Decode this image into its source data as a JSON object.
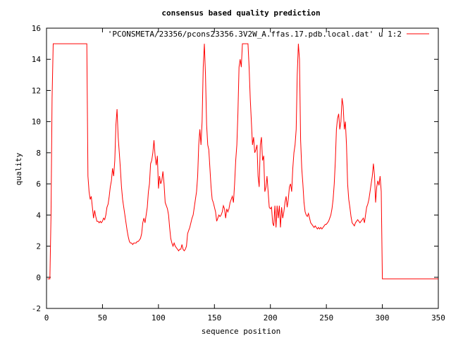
{
  "chart_data": {
    "type": "line",
    "title": "consensus based quality prediction",
    "xlabel": "sequence position",
    "ylabel": "quality",
    "xlim": [
      0,
      350
    ],
    "ylim": [
      -2,
      16
    ],
    "xticks": [
      0,
      50,
      100,
      150,
      200,
      250,
      300,
      350
    ],
    "yticks": [
      -2,
      0,
      2,
      4,
      6,
      8,
      10,
      12,
      14,
      16
    ],
    "grid": false,
    "legend_position": "top-right",
    "series": [
      {
        "name": "'PCONSMETA/23356/pcons23356.3V2W_A.ffas.17.pdb.local.dat' u 1:2",
        "color": "#ff0000",
        "points": [
          [
            1,
            -0.1
          ],
          [
            2,
            -0.1
          ],
          [
            3,
            -0.1
          ],
          [
            4,
            4.0
          ],
          [
            5,
            11.5
          ],
          [
            6,
            15.0
          ],
          [
            10,
            15.0
          ],
          [
            15,
            15.0
          ],
          [
            20,
            15.0
          ],
          [
            25,
            15.0
          ],
          [
            30,
            15.0
          ],
          [
            35,
            15.0
          ],
          [
            36,
            15.0
          ],
          [
            37,
            6.5
          ],
          [
            38,
            5.5
          ],
          [
            39,
            5.0
          ],
          [
            40,
            5.2
          ],
          [
            41,
            4.5
          ],
          [
            42,
            3.8
          ],
          [
            43,
            4.3
          ],
          [
            44,
            3.9
          ],
          [
            45,
            3.6
          ],
          [
            46,
            3.6
          ],
          [
            47,
            3.5
          ],
          [
            48,
            3.6
          ],
          [
            49,
            3.5
          ],
          [
            50,
            3.6
          ],
          [
            51,
            3.8
          ],
          [
            52,
            3.7
          ],
          [
            53,
            4.0
          ],
          [
            54,
            4.5
          ],
          [
            55,
            4.7
          ],
          [
            56,
            5.2
          ],
          [
            57,
            5.8
          ],
          [
            58,
            6.2
          ],
          [
            59,
            7.0
          ],
          [
            60,
            6.5
          ],
          [
            61,
            7.5
          ],
          [
            62,
            9.8
          ],
          [
            63,
            10.8
          ],
          [
            64,
            9.0
          ],
          [
            65,
            8.0
          ],
          [
            66,
            7.0
          ],
          [
            67,
            5.8
          ],
          [
            68,
            5.0
          ],
          [
            69,
            4.5
          ],
          [
            70,
            4.0
          ],
          [
            71,
            3.5
          ],
          [
            72,
            3.0
          ],
          [
            73,
            2.6
          ],
          [
            74,
            2.3
          ],
          [
            75,
            2.2
          ],
          [
            76,
            2.2
          ],
          [
            77,
            2.1
          ],
          [
            78,
            2.2
          ],
          [
            79,
            2.2
          ],
          [
            80,
            2.2
          ],
          [
            81,
            2.3
          ],
          [
            82,
            2.3
          ],
          [
            83,
            2.4
          ],
          [
            84,
            2.5
          ],
          [
            85,
            2.8
          ],
          [
            86,
            3.5
          ],
          [
            87,
            3.8
          ],
          [
            88,
            3.5
          ],
          [
            89,
            4.0
          ],
          [
            90,
            4.5
          ],
          [
            91,
            5.5
          ],
          [
            92,
            6.0
          ],
          [
            93,
            7.3
          ],
          [
            94,
            7.5
          ],
          [
            95,
            8.0
          ],
          [
            96,
            8.8
          ],
          [
            97,
            7.8
          ],
          [
            98,
            7.2
          ],
          [
            99,
            7.8
          ],
          [
            100,
            5.7
          ],
          [
            101,
            6.5
          ],
          [
            102,
            6.0
          ],
          [
            103,
            6.2
          ],
          [
            104,
            6.8
          ],
          [
            105,
            6.0
          ],
          [
            106,
            4.8
          ],
          [
            107,
            4.6
          ],
          [
            108,
            4.4
          ],
          [
            109,
            4.0
          ],
          [
            110,
            3.2
          ],
          [
            111,
            2.5
          ],
          [
            112,
            2.2
          ],
          [
            113,
            2.0
          ],
          [
            114,
            2.2
          ],
          [
            115,
            2.0
          ],
          [
            116,
            1.9
          ],
          [
            117,
            1.8
          ],
          [
            118,
            1.7
          ],
          [
            119,
            1.8
          ],
          [
            120,
            1.8
          ],
          [
            121,
            2.1
          ],
          [
            122,
            1.8
          ],
          [
            123,
            1.7
          ],
          [
            124,
            1.8
          ],
          [
            125,
            2.0
          ],
          [
            126,
            2.8
          ],
          [
            127,
            3.0
          ],
          [
            128,
            3.2
          ],
          [
            129,
            3.5
          ],
          [
            130,
            3.8
          ],
          [
            131,
            4.0
          ],
          [
            132,
            4.5
          ],
          [
            133,
            5.0
          ],
          [
            134,
            5.5
          ],
          [
            135,
            6.5
          ],
          [
            136,
            8.5
          ],
          [
            137,
            9.5
          ],
          [
            138,
            8.5
          ],
          [
            139,
            10.0
          ],
          [
            140,
            13.5
          ],
          [
            141,
            15.0
          ],
          [
            142,
            13.0
          ],
          [
            143,
            9.8
          ],
          [
            144,
            8.5
          ],
          [
            145,
            8.2
          ],
          [
            146,
            7.0
          ],
          [
            147,
            5.8
          ],
          [
            148,
            5.0
          ],
          [
            149,
            4.8
          ],
          [
            150,
            4.5
          ],
          [
            151,
            4.2
          ],
          [
            152,
            3.6
          ],
          [
            153,
            3.8
          ],
          [
            154,
            4.0
          ],
          [
            155,
            3.9
          ],
          [
            156,
            4.0
          ],
          [
            157,
            4.2
          ],
          [
            158,
            4.6
          ],
          [
            159,
            4.4
          ],
          [
            160,
            3.8
          ],
          [
            161,
            4.4
          ],
          [
            162,
            4.2
          ],
          [
            163,
            4.4
          ],
          [
            164,
            4.8
          ],
          [
            165,
            5.0
          ],
          [
            166,
            5.2
          ],
          [
            167,
            4.8
          ],
          [
            168,
            6.0
          ],
          [
            169,
            7.5
          ],
          [
            170,
            8.5
          ],
          [
            171,
            10.5
          ],
          [
            172,
            13.5
          ],
          [
            173,
            14.0
          ],
          [
            174,
            13.5
          ],
          [
            175,
            15.0
          ],
          [
            178,
            15.0
          ],
          [
            180,
            15.0
          ],
          [
            181,
            13.5
          ],
          [
            182,
            11.5
          ],
          [
            183,
            10.0
          ],
          [
            184,
            8.5
          ],
          [
            185,
            9.0
          ],
          [
            186,
            8.0
          ],
          [
            187,
            8.2
          ],
          [
            188,
            8.5
          ],
          [
            189,
            6.5
          ],
          [
            190,
            5.8
          ],
          [
            191,
            8.5
          ],
          [
            192,
            9.0
          ],
          [
            193,
            7.5
          ],
          [
            194,
            7.8
          ],
          [
            195,
            5.5
          ],
          [
            196,
            5.8
          ],
          [
            197,
            6.5
          ],
          [
            198,
            5.5
          ],
          [
            199,
            4.5
          ],
          [
            200,
            4.4
          ],
          [
            201,
            4.5
          ],
          [
            202,
            3.5
          ],
          [
            203,
            3.3
          ],
          [
            204,
            4.6
          ],
          [
            205,
            3.2
          ],
          [
            206,
            4.6
          ],
          [
            207,
            3.8
          ],
          [
            208,
            4.6
          ],
          [
            209,
            3.2
          ],
          [
            210,
            4.5
          ],
          [
            211,
            3.8
          ],
          [
            212,
            4.2
          ],
          [
            213,
            4.8
          ],
          [
            214,
            5.2
          ],
          [
            215,
            4.5
          ],
          [
            216,
            5.0
          ],
          [
            217,
            5.8
          ],
          [
            218,
            6.0
          ],
          [
            219,
            5.5
          ],
          [
            220,
            7.0
          ],
          [
            221,
            8.0
          ],
          [
            222,
            8.5
          ],
          [
            223,
            9.5
          ],
          [
            224,
            13.0
          ],
          [
            225,
            15.0
          ],
          [
            226,
            14.0
          ],
          [
            227,
            8.8
          ],
          [
            228,
            7.0
          ],
          [
            229,
            6.0
          ],
          [
            230,
            4.8
          ],
          [
            231,
            4.2
          ],
          [
            232,
            4.0
          ],
          [
            233,
            3.9
          ],
          [
            234,
            4.1
          ],
          [
            235,
            3.8
          ],
          [
            236,
            3.5
          ],
          [
            237,
            3.4
          ],
          [
            238,
            3.3
          ],
          [
            239,
            3.2
          ],
          [
            240,
            3.3
          ],
          [
            241,
            3.2
          ],
          [
            242,
            3.1
          ],
          [
            243,
            3.2
          ],
          [
            244,
            3.1
          ],
          [
            245,
            3.2
          ],
          [
            246,
            3.1
          ],
          [
            247,
            3.2
          ],
          [
            248,
            3.3
          ],
          [
            249,
            3.4
          ],
          [
            250,
            3.4
          ],
          [
            251,
            3.5
          ],
          [
            252,
            3.6
          ],
          [
            253,
            3.8
          ],
          [
            254,
            4.0
          ],
          [
            255,
            4.4
          ],
          [
            256,
            5.0
          ],
          [
            257,
            6.0
          ],
          [
            258,
            7.5
          ],
          [
            259,
            9.5
          ],
          [
            260,
            10.2
          ],
          [
            261,
            10.5
          ],
          [
            262,
            9.5
          ],
          [
            263,
            10.0
          ],
          [
            264,
            11.5
          ],
          [
            265,
            11.0
          ],
          [
            266,
            9.5
          ],
          [
            267,
            10.0
          ],
          [
            268,
            8.5
          ],
          [
            269,
            6.0
          ],
          [
            270,
            5.0
          ],
          [
            271,
            4.5
          ],
          [
            272,
            3.9
          ],
          [
            273,
            3.5
          ],
          [
            274,
            3.4
          ],
          [
            275,
            3.3
          ],
          [
            276,
            3.5
          ],
          [
            277,
            3.6
          ],
          [
            278,
            3.7
          ],
          [
            279,
            3.6
          ],
          [
            280,
            3.5
          ],
          [
            281,
            3.6
          ],
          [
            282,
            3.7
          ],
          [
            283,
            3.8
          ],
          [
            284,
            3.5
          ],
          [
            285,
            4.0
          ],
          [
            286,
            4.5
          ],
          [
            287,
            4.7
          ],
          [
            288,
            5.0
          ],
          [
            289,
            5.5
          ],
          [
            290,
            6.0
          ],
          [
            291,
            6.5
          ],
          [
            292,
            7.3
          ],
          [
            293,
            6.5
          ],
          [
            294,
            4.8
          ],
          [
            295,
            5.8
          ],
          [
            296,
            6.2
          ],
          [
            297,
            5.9
          ],
          [
            298,
            6.5
          ],
          [
            299,
            5.5
          ],
          [
            300,
            -0.1
          ],
          [
            305,
            -0.1
          ],
          [
            310,
            -0.1
          ],
          [
            315,
            -0.1
          ],
          [
            320,
            -0.1
          ],
          [
            325,
            -0.1
          ],
          [
            330,
            -0.1
          ],
          [
            335,
            -0.1
          ],
          [
            340,
            -0.1
          ],
          [
            345,
            -0.1
          ],
          [
            350,
            -0.1
          ]
        ]
      }
    ]
  }
}
